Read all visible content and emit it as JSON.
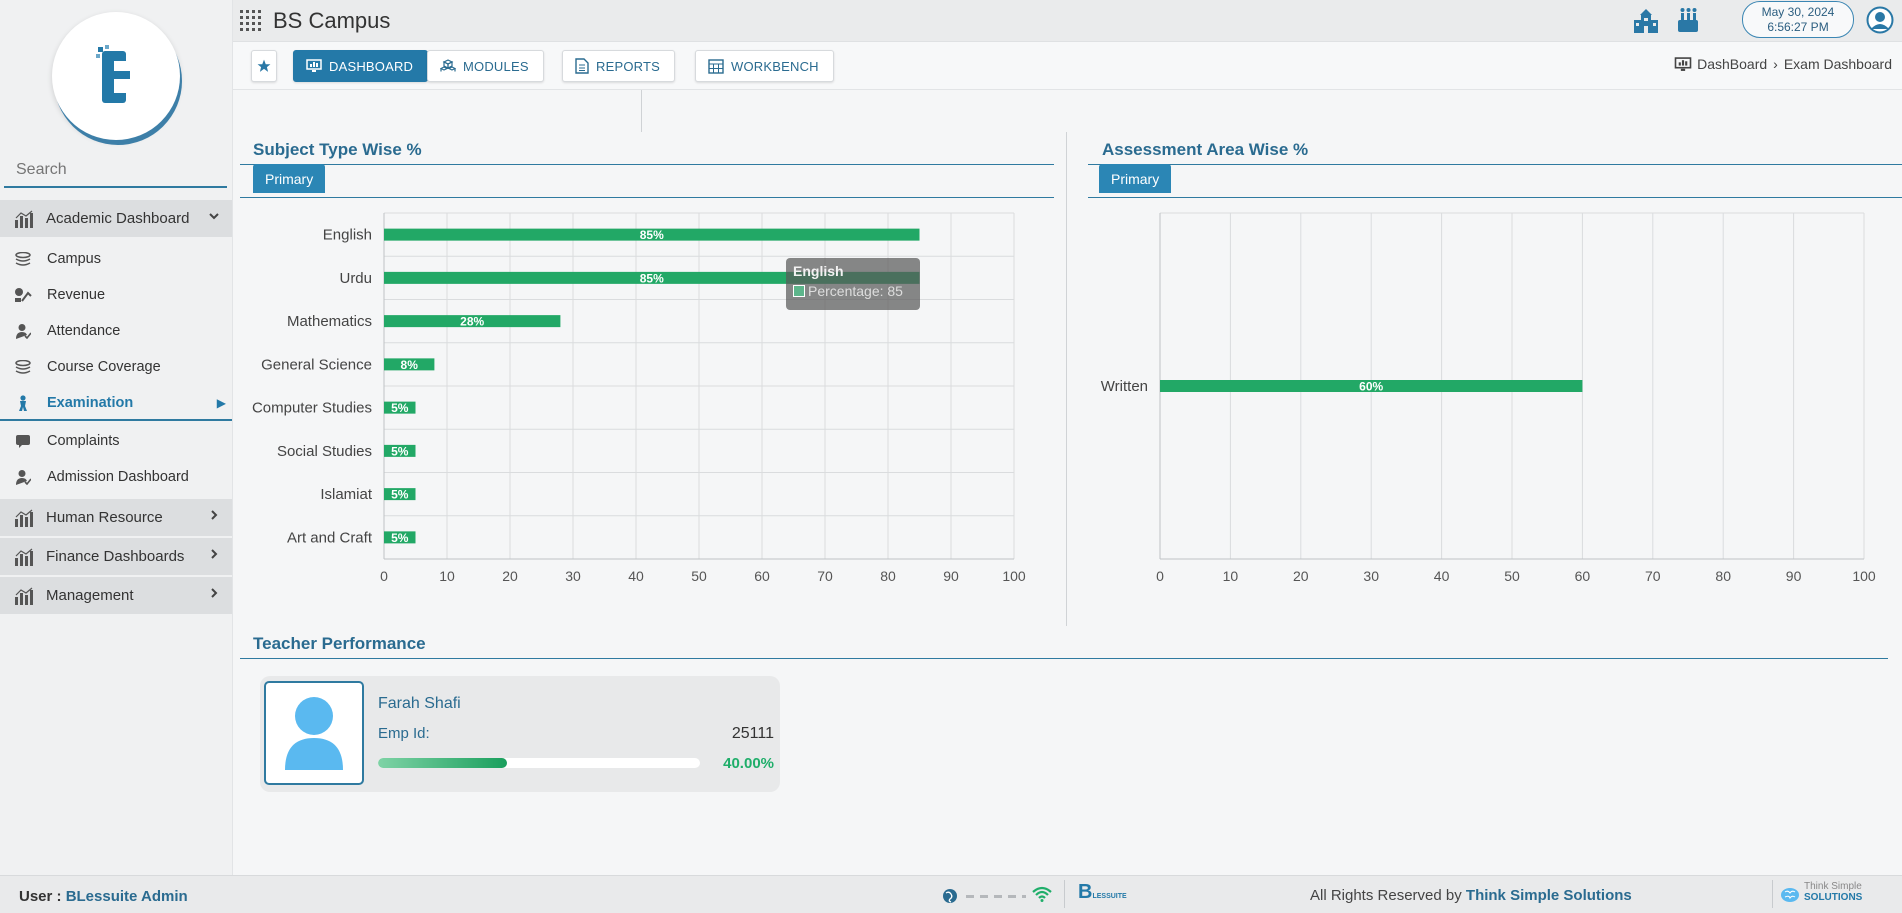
{
  "app": {
    "title": "BS Campus"
  },
  "datetime": {
    "date": "May 30, 2024",
    "time": "6:56:27 PM"
  },
  "search": {
    "placeholder": "Search"
  },
  "sidebar": {
    "groups": [
      {
        "label": "Academic Dashboard",
        "expanded": true
      },
      {
        "label": "Human Resource",
        "expanded": false
      },
      {
        "label": "Finance Dashboards",
        "expanded": false
      },
      {
        "label": "Management",
        "expanded": false
      }
    ],
    "items": [
      {
        "label": "Campus",
        "icon": "stack-icon"
      },
      {
        "label": "Revenue",
        "icon": "revenue-icon"
      },
      {
        "label": "Attendance",
        "icon": "user-check-icon"
      },
      {
        "label": "Course Coverage",
        "icon": "books-icon"
      },
      {
        "label": "Examination",
        "icon": "student-icon",
        "active": true
      },
      {
        "label": "Complaints",
        "icon": "comment-icon"
      },
      {
        "label": "Admission Dashboard",
        "icon": "user-check-icon"
      }
    ]
  },
  "nav": {
    "buttons": [
      {
        "label": "DASHBOARD",
        "active": true
      },
      {
        "label": "MODULES",
        "active": false
      },
      {
        "label": "REPORTS",
        "active": false
      },
      {
        "label": "WORKBENCH",
        "active": false
      }
    ],
    "breadcrumb": [
      "DashBoard",
      "Exam Dashboard"
    ],
    "breadcrumb_sep": "›"
  },
  "subject_panel": {
    "title": "Subject Type Wise %",
    "tab": "Primary"
  },
  "assessment_panel": {
    "title": "Assessment Area Wise %",
    "tab": "Primary"
  },
  "tooltip": {
    "title": "English",
    "label": "Percentage: 85"
  },
  "chart_data": [
    {
      "type": "bar",
      "orientation": "horizontal",
      "categories": [
        "English",
        "Urdu",
        "Mathematics",
        "General Science",
        "Computer Studies",
        "Social Studies",
        "Islamiat",
        "Art and Craft"
      ],
      "values": [
        85,
        85,
        28,
        8,
        5,
        5,
        5,
        5
      ],
      "value_labels": [
        "85%",
        "85%",
        "28%",
        "8%",
        "5%",
        "5%",
        "5%",
        "5%"
      ],
      "xlim": [
        0,
        100
      ],
      "xticks": [
        "0",
        "10",
        "20",
        "30",
        "40",
        "50",
        "60",
        "70",
        "80",
        "90",
        "100"
      ],
      "grid": true,
      "color": "#22a866"
    },
    {
      "type": "bar",
      "orientation": "horizontal",
      "categories": [
        "Written"
      ],
      "values": [
        60
      ],
      "value_labels": [
        "60%"
      ],
      "xlim": [
        0,
        100
      ],
      "xticks": [
        "0",
        "10",
        "20",
        "30",
        "40",
        "50",
        "60",
        "70",
        "80",
        "90",
        "100"
      ],
      "grid": true,
      "color": "#22a866"
    }
  ],
  "teacher_performance": {
    "title": "Teacher Performance",
    "teacher": {
      "name": "Farah Shafi",
      "emp_label": "Emp Id:",
      "emp_id": "25111",
      "percent_label": "40.00%",
      "progress": 0.4
    }
  },
  "footer": {
    "user_prefix": "User : ",
    "user": "BLessuite Admin",
    "rights_prefix": "All Rights Reserved by ",
    "company": "Think Simple Solutions",
    "logo_text": "LESSUITE",
    "brand_top": "Think Simple",
    "brand_bottom": "SOLUTIONS"
  },
  "colors": {
    "accent": "#2479a8",
    "bar": "#22a866",
    "percent": "#1fae6a"
  }
}
